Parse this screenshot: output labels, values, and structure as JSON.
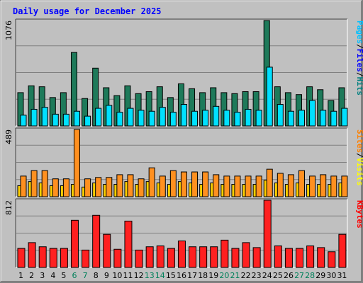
{
  "chart_data": {
    "type": "bar",
    "title": "Daily usage for December 2025",
    "days": [
      "1",
      "2",
      "3",
      "4",
      "5",
      "6",
      "7",
      "8",
      "9",
      "10",
      "11",
      "12",
      "13",
      "14",
      "15",
      "16",
      "17",
      "18",
      "19",
      "20",
      "21",
      "22",
      "23",
      "24",
      "25",
      "26",
      "27",
      "28",
      "29",
      "30",
      "31"
    ],
    "weekend_days": [
      "6",
      "7",
      "13",
      "14",
      "20",
      "21",
      "27",
      "28"
    ],
    "panels": [
      {
        "id": "hits-files-pages",
        "max_label": "1076",
        "ylim": [
          0,
          1076
        ],
        "legend": [
          {
            "text": "Hits",
            "color": "#008080"
          },
          {
            "text": "Files",
            "color": "#0000ff"
          },
          {
            "text": "Pages",
            "color": "#00c0ff"
          }
        ],
        "legend_separator": " / ",
        "series": [
          {
            "name": "Hits",
            "color": "#1e7a5a",
            "values": [
              340,
              410,
              400,
              290,
              340,
              750,
              280,
              590,
              390,
              310,
              410,
              330,
              350,
              400,
              290,
              430,
              380,
              340,
              390,
              340,
              330,
              350,
              350,
              1076,
              400,
              340,
              320,
              400,
              370,
              260,
              390
            ]
          },
          {
            "name": "Files",
            "color": "#00a0c0",
            "values": [
              110,
              170,
              190,
              120,
              120,
              150,
              100,
              180,
              210,
              140,
              180,
              160,
              150,
              190,
              140,
              220,
              150,
              160,
              200,
              160,
              140,
              170,
              160,
              600,
              220,
              150,
              160,
              260,
              160,
              150,
              180
            ]
          },
          {
            "name": "Pages",
            "color": "#00e0ff",
            "values": [
              110,
              170,
              190,
              120,
              120,
              150,
              100,
              180,
              210,
              140,
              180,
              160,
              150,
              190,
              140,
              220,
              150,
              160,
              200,
              160,
              140,
              170,
              160,
              600,
              220,
              150,
              160,
              260,
              160,
              150,
              180
            ]
          }
        ]
      },
      {
        "id": "visits-sites",
        "max_label": "489",
        "ylim": [
          0,
          489
        ],
        "legend": [
          {
            "text": "Visits",
            "color": "#ffff00"
          },
          {
            "text": "Sites",
            "color": "#ff8000"
          }
        ],
        "legend_separator": " / ",
        "series": [
          {
            "name": "Visits",
            "color": "#ff9020",
            "values": [
              150,
              190,
              190,
              130,
              130,
              489,
              130,
              140,
              140,
              160,
              160,
              130,
              210,
              150,
              190,
              180,
              180,
              180,
              160,
              150,
              150,
              150,
              150,
              200,
              170,
              160,
              190,
              150,
              160,
              150,
              150
            ]
          },
          {
            "name": "Sites",
            "color": "#ffd000",
            "values": [
              80,
              110,
              100,
              80,
              80,
              90,
              70,
              100,
              90,
              90,
              110,
              90,
              110,
              100,
              90,
              110,
              100,
              90,
              100,
              90,
              90,
              90,
              90,
              120,
              100,
              90,
              100,
              90,
              90,
              90,
              100
            ]
          }
        ]
      },
      {
        "id": "kbytes",
        "max_label": "812",
        "ylim": [
          0,
          812
        ],
        "legend": [
          {
            "text": "KBytes",
            "color": "#ff0000"
          }
        ],
        "legend_separator": "",
        "series": [
          {
            "name": "KBytes",
            "color": "#ff2020",
            "values": [
              230,
              300,
              250,
              230,
              230,
              570,
              210,
              630,
              400,
              220,
              560,
              210,
              250,
              260,
              230,
              320,
              250,
              250,
              250,
              330,
              230,
              300,
              240,
              812,
              260,
              230,
              230,
              260,
              240,
              190,
              400
            ]
          }
        ]
      }
    ],
    "colors": {
      "plot_bg": "#c0c0c0",
      "gridline": "#808080",
      "title_color": "#0000ff",
      "weekday_label": "#000000",
      "weekend_label": "#00805a"
    }
  }
}
